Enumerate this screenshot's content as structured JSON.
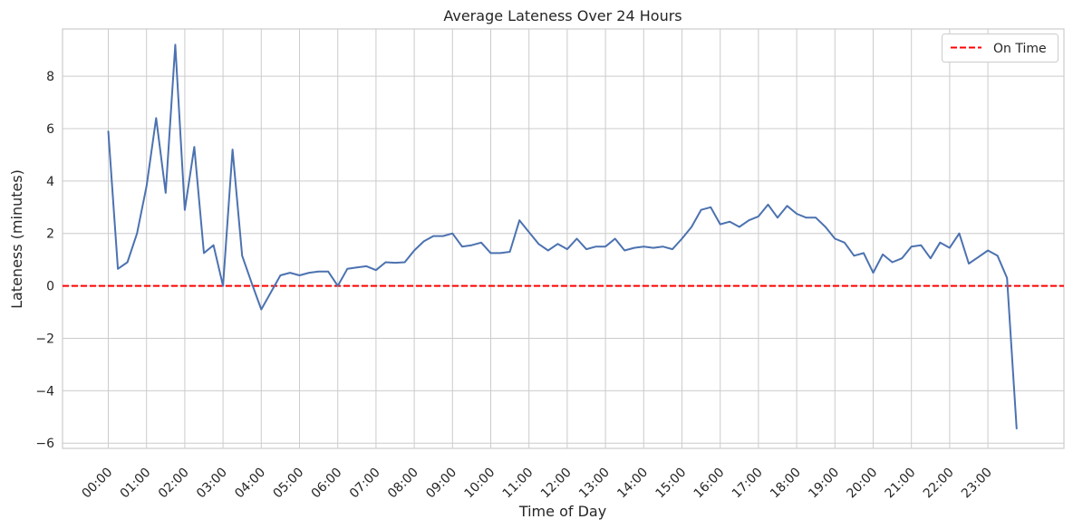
{
  "chart_data": {
    "type": "line",
    "title": "Average Lateness Over 24 Hours",
    "xlabel": "Time of Day",
    "ylabel": "Lateness (minutes)",
    "ylim": [
      -6.2,
      9.8
    ],
    "yticks": [
      -6,
      -4,
      -2,
      0,
      2,
      4,
      6,
      8
    ],
    "ytick_labels": [
      "−6",
      "−4",
      "−2",
      "0",
      "2",
      "4",
      "6",
      "8"
    ],
    "x_ticks": [
      "00:00",
      "01:00",
      "02:00",
      "03:00",
      "04:00",
      "05:00",
      "06:00",
      "07:00",
      "08:00",
      "09:00",
      "10:00",
      "11:00",
      "12:00",
      "13:00",
      "14:00",
      "15:00",
      "16:00",
      "17:00",
      "18:00",
      "19:00",
      "20:00",
      "21:00",
      "22:00",
      "23:00"
    ],
    "x_interval_minutes": 15,
    "grid": true,
    "legend_position": "top-right",
    "reference_line": {
      "label": "On Time",
      "y": 0,
      "color": "#ff0000",
      "style": "dashed"
    },
    "series": [
      {
        "color": "#4c72b0",
        "values": [
          5.9,
          0.65,
          0.9,
          2.0,
          3.8,
          6.4,
          3.55,
          9.2,
          2.9,
          5.3,
          1.25,
          1.55,
          0.0,
          5.2,
          1.15,
          0.1,
          -0.9,
          -0.25,
          0.4,
          0.5,
          0.4,
          0.5,
          0.55,
          0.55,
          0.0,
          0.65,
          0.7,
          0.75,
          0.6,
          0.9,
          0.88,
          0.9,
          1.35,
          1.7,
          1.9,
          1.9,
          2.0,
          1.5,
          1.55,
          1.65,
          1.25,
          1.25,
          1.3,
          2.5,
          2.05,
          1.6,
          1.35,
          1.6,
          1.4,
          1.8,
          1.4,
          1.5,
          1.5,
          1.8,
          1.35,
          1.45,
          1.5,
          1.45,
          1.5,
          1.4,
          1.8,
          2.25,
          2.9,
          3.0,
          2.35,
          2.45,
          2.25,
          2.5,
          2.65,
          3.1,
          2.6,
          3.05,
          2.75,
          2.6,
          2.6,
          2.25,
          1.8,
          1.65,
          1.15,
          1.25,
          0.5,
          1.2,
          0.9,
          1.05,
          1.5,
          1.55,
          1.05,
          1.65,
          1.45,
          2.0,
          0.85,
          1.1,
          1.35,
          1.15,
          0.3,
          -5.45
        ]
      }
    ]
  }
}
